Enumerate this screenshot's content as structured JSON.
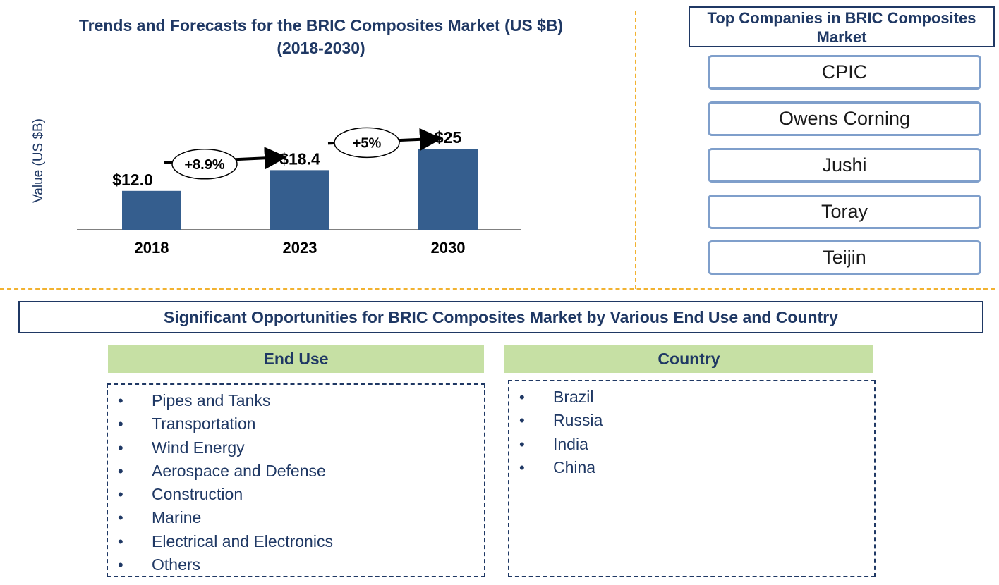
{
  "chart_data": {
    "type": "bar",
    "title": "Trends and Forecasts for the BRIC Composites Market (US $B) (2018-2030)",
    "ylabel": "Value (US $B)",
    "categories": [
      "2018",
      "2023",
      "2030"
    ],
    "values": [
      12.0,
      18.4,
      25
    ],
    "data_labels": [
      "$12.0",
      "$18.4",
      "$25"
    ],
    "growth_annotations": [
      {
        "from": "2018",
        "to": "2023",
        "label": "+8.9%"
      },
      {
        "from": "2023",
        "to": "2030",
        "label": "+5%"
      }
    ],
    "bar_color": "#355e8e",
    "grid": false
  },
  "title_lines": [
    "Trends and Forecasts for the BRIC Composites Market (US $B)",
    "(2018-2030)"
  ],
  "companies": {
    "title": "Top Companies in BRIC Composites Market",
    "items": [
      "CPIC",
      "Owens Corning",
      "Jushi",
      "Toray",
      "Teijin"
    ]
  },
  "opportunities": {
    "title": "Significant Opportunities for BRIC Composites Market by Various End Use and Country",
    "end_use": {
      "header": "End Use",
      "items": [
        "Pipes and Tanks",
        "Transportation",
        "Wind Energy",
        "Aerospace and Defense",
        "Construction",
        "Marine",
        "Electrical and Electronics",
        "Others"
      ]
    },
    "country": {
      "header": "Country",
      "items": [
        "Brazil",
        "Russia",
        "India",
        "China"
      ]
    }
  },
  "colors": {
    "title": "#1f3864",
    "divider": "#f2b230",
    "segment_header": "#c6e0a4",
    "company_border": "#7f9fcb"
  }
}
